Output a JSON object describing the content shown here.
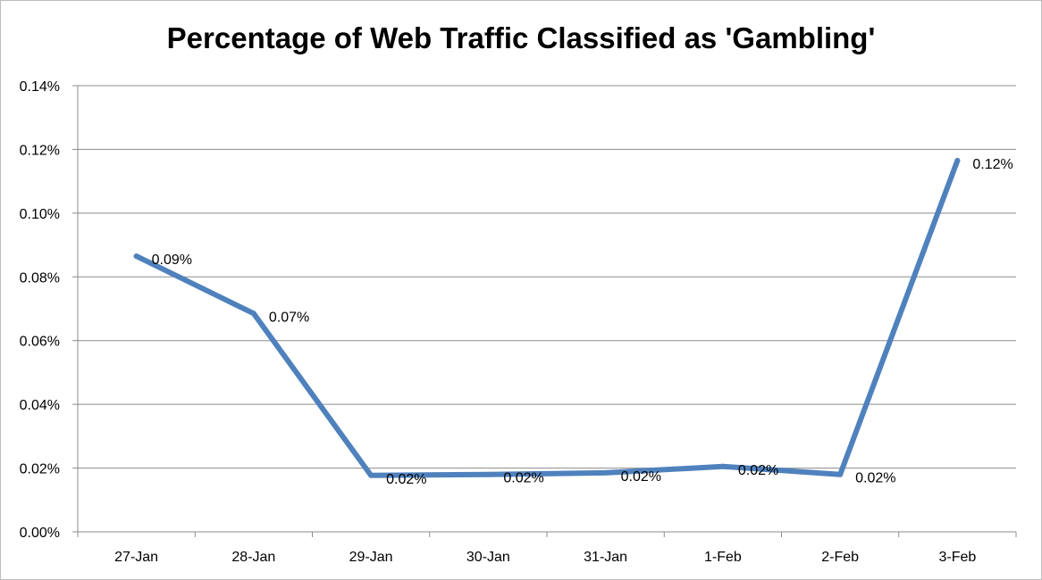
{
  "chart_data": {
    "type": "line",
    "title": "Percentage of Web Traffic Classified as 'Gambling'",
    "xlabel": "",
    "ylabel": "",
    "categories": [
      "27-Jan",
      "28-Jan",
      "29-Jan",
      "30-Jan",
      "31-Jan",
      "1-Feb",
      "2-Feb",
      "3-Feb"
    ],
    "series": [
      {
        "values": [
          0.0865,
          0.0685,
          0.0177,
          0.018,
          0.0185,
          0.0205,
          0.018,
          0.1165
        ],
        "data_labels": [
          "0.09%",
          "0.07%",
          "0.02%",
          "0.02%",
          "0.02%",
          "0.02%",
          "0.02%",
          "0.12%"
        ],
        "color": "#4F81BD"
      }
    ],
    "ylim": [
      0,
      0.14
    ],
    "y_ticks": [
      0,
      0.02,
      0.04,
      0.06,
      0.08,
      0.1,
      0.12,
      0.14
    ],
    "y_tick_labels": [
      "0.00%",
      "0.02%",
      "0.04%",
      "0.06%",
      "0.08%",
      "0.10%",
      "0.12%",
      "0.14%"
    ],
    "grid": true,
    "legend": "none"
  }
}
